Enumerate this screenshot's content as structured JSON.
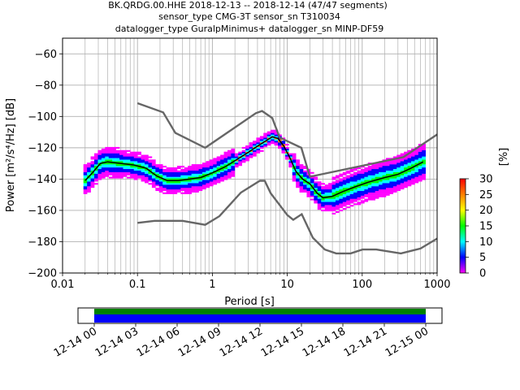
{
  "title_lines": [
    "BK.QRDG.00.HHE   2018-12-13 -- 2018-12-14  (47/47 segments)",
    "sensor_type CMG-3T sensor_sn T310034",
    "datalogger_type GuralpMinimus+ datalogger_sn MINP-DF59"
  ],
  "chart_data": {
    "type": "heatmap",
    "xlabel": "Period [s]",
    "ylabel": "Power [m²/s⁴/Hz] [dB]",
    "x_scale": "log",
    "xlim": [
      0.01,
      1000
    ],
    "ylim": [
      -200,
      -50
    ],
    "x_ticks": [
      {
        "value": 0.01,
        "label": "0.01"
      },
      {
        "value": 0.1,
        "label": "0.1"
      },
      {
        "value": 1,
        "label": "1"
      },
      {
        "value": 10,
        "label": "10"
      },
      {
        "value": 100,
        "label": "100"
      },
      {
        "value": 1000,
        "label": "1000"
      }
    ],
    "y_ticks": [
      {
        "value": -60,
        "label": "−60"
      },
      {
        "value": -80,
        "label": "−80"
      },
      {
        "value": -100,
        "label": "−100"
      },
      {
        "value": -120,
        "label": "−120"
      },
      {
        "value": -140,
        "label": "−140"
      },
      {
        "value": -160,
        "label": "−160"
      },
      {
        "value": -180,
        "label": "−180"
      },
      {
        "value": -200,
        "label": "−200"
      }
    ],
    "grid": true,
    "colorbar": {
      "label": "[%]",
      "range": [
        0,
        30
      ],
      "ticks": [
        {
          "value": 0,
          "label": "0"
        },
        {
          "value": 5,
          "label": "5"
        },
        {
          "value": 10,
          "label": "10"
        },
        {
          "value": 15,
          "label": "15"
        },
        {
          "value": 20,
          "label": "20"
        },
        {
          "value": 25,
          "label": "25"
        },
        {
          "value": 30,
          "label": "30"
        }
      ],
      "colors": [
        "#ff00ff",
        "#0000ff",
        "#00ffff",
        "#00ff00",
        "#ffff00",
        "#ff8000",
        "#ff0000"
      ]
    },
    "mean_curve": {
      "color": "#000000",
      "points": [
        [
          0.02,
          -141
        ],
        [
          0.025,
          -136
        ],
        [
          0.032,
          -130
        ],
        [
          0.04,
          -129
        ],
        [
          0.06,
          -130
        ],
        [
          0.09,
          -131
        ],
        [
          0.13,
          -133
        ],
        [
          0.18,
          -138
        ],
        [
          0.25,
          -141
        ],
        [
          0.35,
          -141
        ],
        [
          0.5,
          -140
        ],
        [
          0.7,
          -139
        ],
        [
          1.0,
          -136
        ],
        [
          1.5,
          -132
        ],
        [
          2.2,
          -127
        ],
        [
          3.0,
          -123
        ],
        [
          4.0,
          -119
        ],
        [
          5.0,
          -116
        ],
        [
          6.3,
          -113
        ],
        [
          7.5,
          -114
        ],
        [
          9.0,
          -119
        ],
        [
          11,
          -127
        ],
        [
          13,
          -135
        ],
        [
          16,
          -140
        ],
        [
          20,
          -143
        ],
        [
          25,
          -149
        ],
        [
          30,
          -152
        ],
        [
          40,
          -151
        ],
        [
          55,
          -148
        ],
        [
          80,
          -145
        ],
        [
          120,
          -142
        ],
        [
          200,
          -139
        ],
        [
          300,
          -137
        ],
        [
          450,
          -133
        ],
        [
          650,
          -129
        ]
      ]
    },
    "nhnm": {
      "color": "#666666",
      "points": [
        [
          0.1,
          -91.5
        ],
        [
          0.22,
          -97.4
        ],
        [
          0.32,
          -110.5
        ],
        [
          0.8,
          -120
        ],
        [
          3.8,
          -97.9
        ],
        [
          4.6,
          -96.5
        ],
        [
          6.3,
          -101
        ],
        [
          7.9,
          -113.5
        ],
        [
          15.4,
          -120
        ],
        [
          20,
          -138.5
        ],
        [
          354.8,
          -126
        ],
        [
          1000,
          -111.5
        ]
      ]
    },
    "nlnm": {
      "color": "#666666",
      "points": [
        [
          0.1,
          -168
        ],
        [
          0.17,
          -166.7
        ],
        [
          0.4,
          -166.7
        ],
        [
          0.8,
          -169.2
        ],
        [
          1.24,
          -163.7
        ],
        [
          2.4,
          -148.6
        ],
        [
          4.3,
          -141.1
        ],
        [
          5.0,
          -141.1
        ],
        [
          6.0,
          -149
        ],
        [
          10,
          -163
        ],
        [
          12,
          -166
        ],
        [
          15.6,
          -162.4
        ],
        [
          21.9,
          -177.5
        ],
        [
          31.6,
          -185
        ],
        [
          45,
          -187.5
        ],
        [
          70,
          -187.5
        ],
        [
          101,
          -185
        ],
        [
          154,
          -185
        ],
        [
          328,
          -187.5
        ],
        [
          600,
          -184.4
        ],
        [
          1000,
          -178
        ]
      ]
    },
    "time_axis": {
      "tick_labels": [
        "12-14 00",
        "12-14 03",
        "12-14 06",
        "12-14 09",
        "12-14 12",
        "12-14 15",
        "12-14 18",
        "12-14 21",
        "12-15 00"
      ],
      "coverage_colors": [
        "#008000",
        "#0000ff"
      ]
    }
  }
}
